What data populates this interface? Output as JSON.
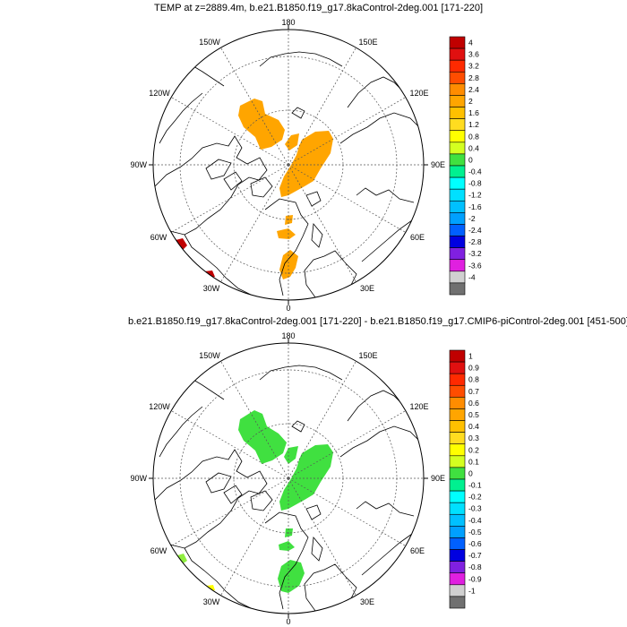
{
  "panels": [
    {
      "title": "TEMP at z=2889.4m, b.e21.B1850.f19_g17.8kaControl-2deg.001 [171-220]",
      "lon_labels": {
        "top": "180",
        "bottom": "0",
        "left": "90W",
        "right": "90E",
        "ul1": "150W",
        "ul2": "120W",
        "ur1": "150E",
        "ur2": "120E",
        "ll1": "60W",
        "ll2": "30W",
        "lr1": "60E",
        "lr2": "30E"
      },
      "colorbar": {
        "labels": [
          "4",
          "3.6",
          "3.2",
          "2.8",
          "2.4",
          "2",
          "1.6",
          "1.2",
          "0.8",
          "0.4",
          "0",
          "-0.4",
          "-0.8",
          "-1.2",
          "-1.6",
          "-2",
          "-2.4",
          "-2.8",
          "-3.2",
          "-3.6",
          "-4"
        ],
        "colors": [
          "#c00000",
          "#e01010",
          "#ff2a00",
          "#ff4d00",
          "#ff8c00",
          "#ffa500",
          "#ffc000",
          "#ffdc20",
          "#ffff00",
          "#d4ff20",
          "#40e040",
          "#00f090",
          "#00ffff",
          "#00e0ff",
          "#00c0ff",
          "#00a0ff",
          "#0060ff",
          "#0000e0",
          "#8020e0",
          "#e020e0",
          "#d0d0d0",
          "#707070"
        ]
      }
    },
    {
      "title": "b.e21.B1850.f19_g17.8kaControl-2deg.001 [171-220] - b.e21.B1850.f19_g17.CMIP6-piControl-2deg.001 [451-500]",
      "lon_labels": {
        "top": "180",
        "bottom": "0",
        "left": "90W",
        "right": "90E",
        "ul1": "150W",
        "ul2": "120W",
        "ur1": "150E",
        "ur2": "120E",
        "ll1": "60W",
        "ll2": "30W",
        "lr1": "60E",
        "lr2": "30E"
      },
      "colorbar": {
        "labels": [
          "1",
          "0.9",
          "0.8",
          "0.7",
          "0.6",
          "0.5",
          "0.4",
          "0.3",
          "0.2",
          "0.1",
          "0",
          "-0.1",
          "-0.2",
          "-0.3",
          "-0.4",
          "-0.5",
          "-0.6",
          "-0.7",
          "-0.8",
          "-0.9",
          "-1"
        ],
        "colors": [
          "#c00000",
          "#e01010",
          "#ff2a00",
          "#ff4d00",
          "#ff8c00",
          "#ffa500",
          "#ffc000",
          "#ffdc20",
          "#ffff00",
          "#d4ff20",
          "#40e040",
          "#00f090",
          "#00ffff",
          "#00e0ff",
          "#00c0ff",
          "#00a0ff",
          "#0060ff",
          "#0000e0",
          "#8020e0",
          "#e020e0",
          "#d0d0d0",
          "#707070"
        ]
      }
    }
  ],
  "field_colors": {
    "panel1_main": "#ffa500",
    "panel1_edge": "#c00000",
    "panel2_main": "#40e040",
    "panel2_edge_green": "#90ee40",
    "panel2_edge_yellow": "#ffff00"
  }
}
